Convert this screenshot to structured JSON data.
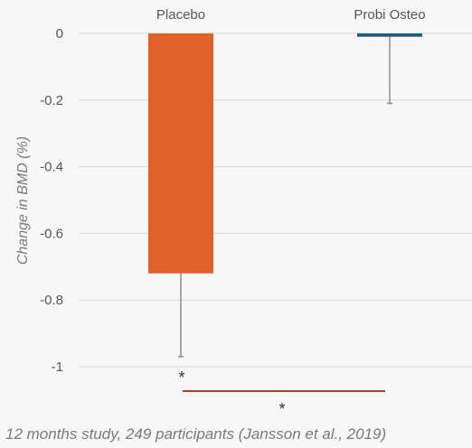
{
  "chart_data": {
    "type": "bar",
    "categories": [
      "Placebo",
      "Probi Osteo"
    ],
    "values": [
      -0.72,
      -0.01
    ],
    "error_bars": [
      -0.97,
      -0.21
    ],
    "ylabel": "Change in BMD (%)",
    "xlabel": "",
    "ylim": [
      -1.05,
      0
    ],
    "yticks": [
      0,
      -0.2,
      -0.4,
      -0.6,
      -0.8,
      -1
    ],
    "ytick_labels": [
      "0",
      "-0.2",
      "-0.4",
      "-0.6",
      "-0.8",
      "-1"
    ],
    "grid": true,
    "colors": [
      "#e0622a",
      "#1f5a85"
    ],
    "annotations": [
      "*",
      "*"
    ],
    "significance_line_color": "#b03a32"
  },
  "caption": "12 months study, 249 participants (Jansson et al., 2019)"
}
